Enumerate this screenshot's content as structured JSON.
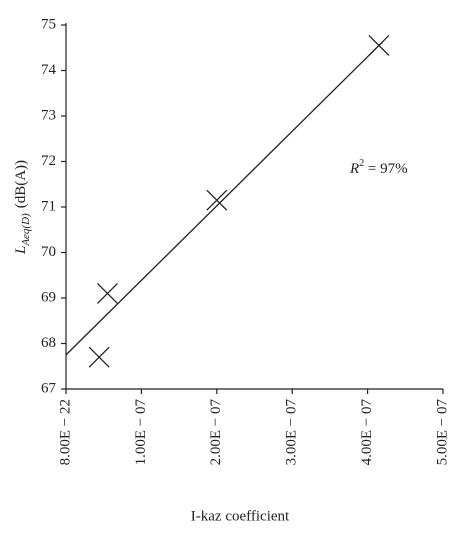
{
  "chart_data": {
    "type": "scatter",
    "x_label": "I-kaz coefficient",
    "y_label": {
      "main": "L",
      "sub": "Aeq(D)",
      "unit": "(dB(A))"
    },
    "annotation": {
      "main": "R",
      "sup": "2",
      "rest": " = 97%"
    },
    "series": [
      {
        "color": "#222222",
        "x": [
          4.4e-08,
          5.5e-08,
          2e-07,
          4.15e-07
        ],
        "values": [
          67.7,
          69.1,
          71.15,
          74.55
        ]
      }
    ],
    "fit_line": {
      "x": [
        0,
        4.2e-07
      ],
      "values": [
        67.75,
        74.63
      ]
    },
    "xlim": [
      0,
      5e-07
    ],
    "xticks": [
      {
        "value": 8e-22,
        "label": "8.00E − 22"
      },
      {
        "value": 1e-07,
        "label": "1.00E − 07"
      },
      {
        "value": 2e-07,
        "label": "2.00E − 07"
      },
      {
        "value": 3e-07,
        "label": "3.00E − 07"
      },
      {
        "value": 4e-07,
        "label": "4.00E − 07"
      },
      {
        "value": 5e-07,
        "label": "5.00E − 07"
      }
    ],
    "ylim": [
      67,
      75
    ],
    "yticks": [
      67,
      68,
      69,
      70,
      71,
      72,
      73,
      74,
      75
    ]
  }
}
